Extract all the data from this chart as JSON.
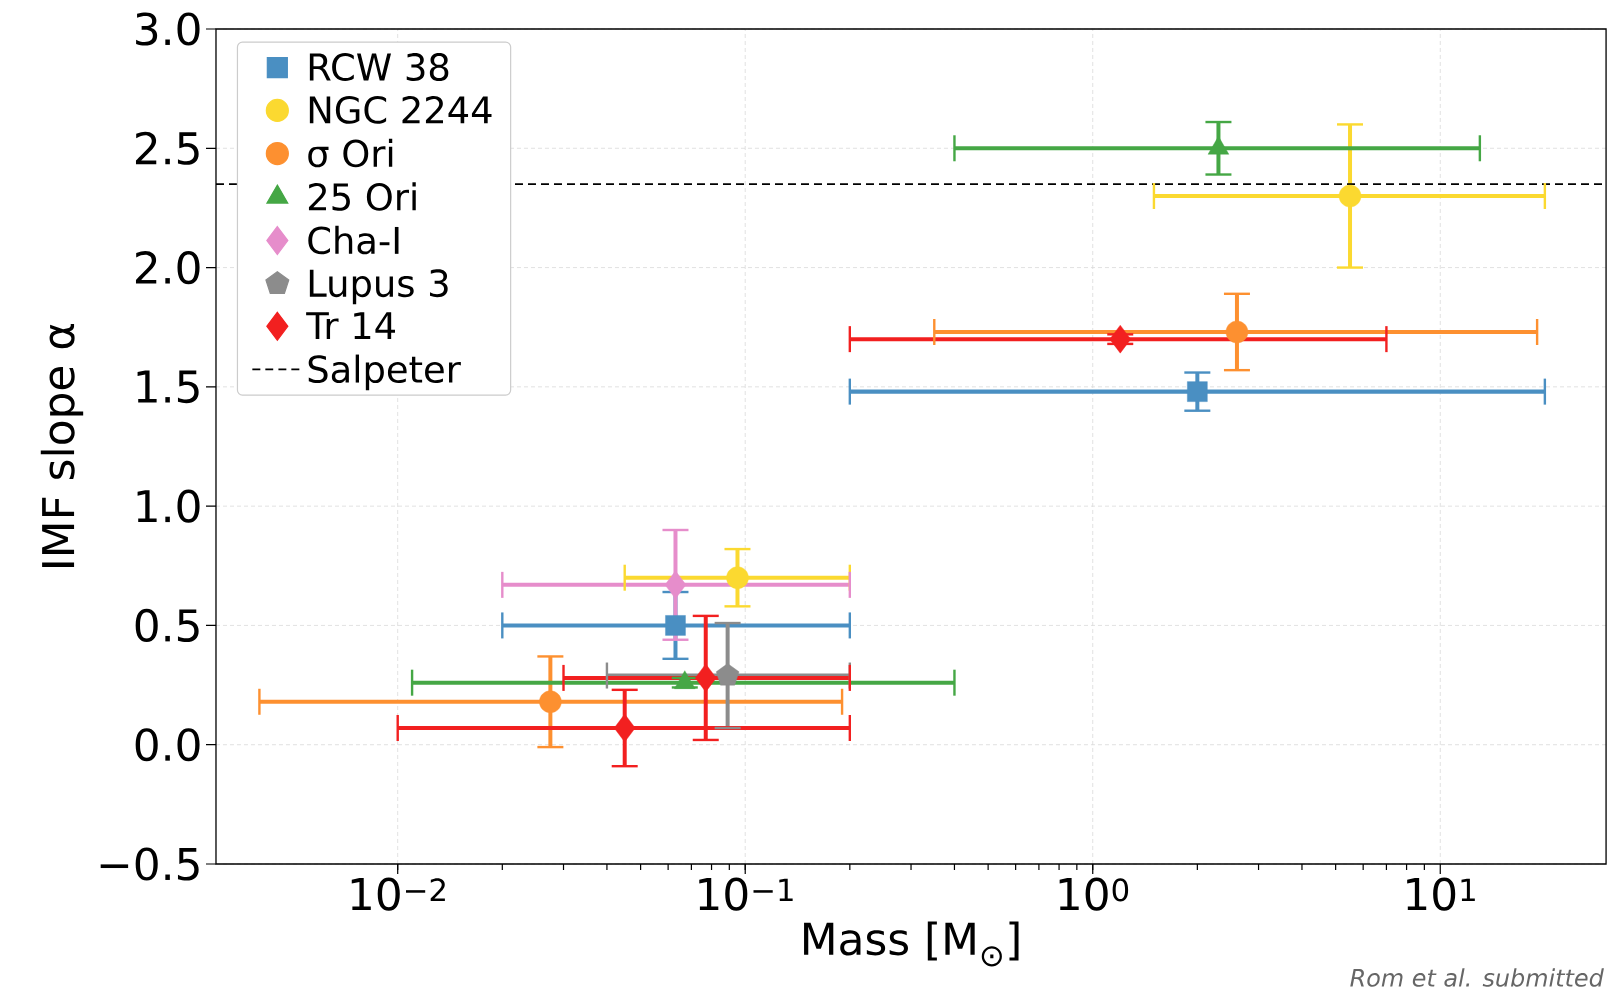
{
  "chart_data": {
    "type": "scatter",
    "xlabel": "Mass [M$_{⊙}$]",
    "ylabel": "IMF slope α",
    "log": "x",
    "grid": true,
    "legend": "top left",
    "xlim": [
      0.003,
      30
    ],
    "ylim": [
      -0.5,
      3.0
    ],
    "xticks": [
      {
        "value": 0.01,
        "label": "10$^{−2}$"
      },
      {
        "value": 0.1,
        "label": "10$^{−1}$"
      },
      {
        "value": 1,
        "label": "10$^{0}$"
      },
      {
        "value": 10,
        "label": "10$^{1}$"
      }
    ],
    "yticks": [
      {
        "value": -0.5,
        "label": "−0.5"
      },
      {
        "value": 0.0,
        "label": "0.0"
      },
      {
        "value": 0.5,
        "label": "0.5"
      },
      {
        "value": 1.0,
        "label": "1.0"
      },
      {
        "value": 1.5,
        "label": "1.5"
      },
      {
        "value": 2.0,
        "label": "2.0"
      },
      {
        "value": 2.5,
        "label": "2.5"
      },
      {
        "value": 3.0,
        "label": "3.0"
      }
    ],
    "series": [
      {
        "name": "RCW 38",
        "color": "#4a8fc2",
        "marker": "square",
        "x": [
          2.0,
          0.063
        ],
        "values": [
          1.48,
          0.5
        ],
        "errors": [
          0.08,
          0.14
        ],
        "xerrors": [
          [
            0.2,
            20
          ],
          [
            0.02,
            0.2
          ]
        ]
      },
      {
        "name": "NGC 2244",
        "color": "#fbd930",
        "marker": "circle",
        "x": [
          5.5,
          0.095
        ],
        "values": [
          2.3,
          0.7
        ],
        "errors": [
          0.3,
          0.12
        ],
        "xerrors": [
          [
            1.5,
            20
          ],
          [
            0.045,
            0.2
          ]
        ]
      },
      {
        "name": "σ Ori",
        "color": "#fd9030",
        "marker": "circle",
        "x": [
          2.6,
          0.0275
        ],
        "values": [
          1.73,
          0.18
        ],
        "errors": [
          0.16,
          0.19
        ],
        "xerrors": [
          [
            0.35,
            19
          ],
          [
            0.004,
            0.19
          ]
        ]
      },
      {
        "name": "25 Ori",
        "color": "#45a745",
        "marker": "triangle",
        "x": [
          2.3,
          0.067
        ],
        "values": [
          2.5,
          0.26
        ],
        "errors": [
          0.11,
          0.02
        ],
        "xerrors": [
          [
            0.4,
            13
          ],
          [
            0.011,
            0.4
          ]
        ]
      },
      {
        "name": "Cha-I",
        "color": "#e68dcb",
        "marker": "diamond",
        "x": [
          0.063
        ],
        "values": [
          0.67
        ],
        "errors": [
          0.23
        ],
        "xerrors": [
          [
            0.02,
            0.2
          ]
        ]
      },
      {
        "name": "Lupus 3",
        "color": "#8c8c8c",
        "x": [
          0.089
        ],
        "values": [
          0.29
        ],
        "errors": [
          0.22
        ],
        "xerrors": [
          [
            0.04,
            0.2
          ]
        ]
      },
      {
        "name": "Tr 14",
        "color": "#f22020",
        "marker": "diamond",
        "x": [
          1.2,
          0.077,
          0.045
        ],
        "values": [
          1.7,
          0.28,
          0.07
        ],
        "errors": [
          0.02,
          0.26,
          0.16
        ],
        "xerrors": [
          [
            0.2,
            7
          ],
          [
            0.03,
            0.2
          ],
          [
            0.01,
            0.2
          ]
        ]
      }
    ],
    "ref_lines": [
      {
        "axis": "y",
        "value": 2.35,
        "label": "Salpeter",
        "color": "#000000",
        "line_style": "dashed"
      }
    ],
    "annotations": [
      "Rom et al. submitted"
    ]
  }
}
